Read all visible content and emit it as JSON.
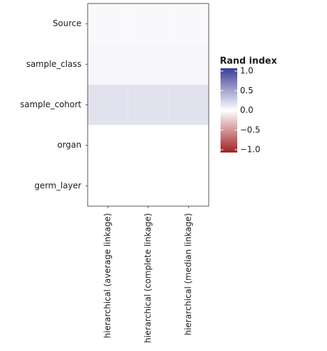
{
  "chart_data": {
    "type": "heatmap",
    "x_categories": [
      "hierarchical (average linkage)",
      "hierarchical (complete linkage)",
      "hierarchical (median linkage)"
    ],
    "y_categories": [
      "Source",
      "sample_class",
      "sample_cohort",
      "organ",
      "germ_layer"
    ],
    "values": [
      [
        0.03,
        0.03,
        0.03
      ],
      [
        0.04,
        0.04,
        0.04
      ],
      [
        0.15,
        0.15,
        0.15
      ],
      [
        0.0,
        0.0,
        0.0
      ],
      [
        0.0,
        0.0,
        0.0
      ]
    ],
    "colorbar_title": "Rand index",
    "clim": [
      -1,
      1
    ],
    "cticks": [
      {
        "value": 1,
        "label": "1.0"
      },
      {
        "value": 0.5,
        "label": "0.5"
      },
      {
        "value": 0,
        "label": "0.0"
      },
      {
        "value": -0.5,
        "label": "−0.5"
      },
      {
        "value": -1,
        "label": "−1.0"
      }
    ],
    "low_color": "#a11f24",
    "mid_color": "#ffffff",
    "high_color": "#3b3d96"
  }
}
